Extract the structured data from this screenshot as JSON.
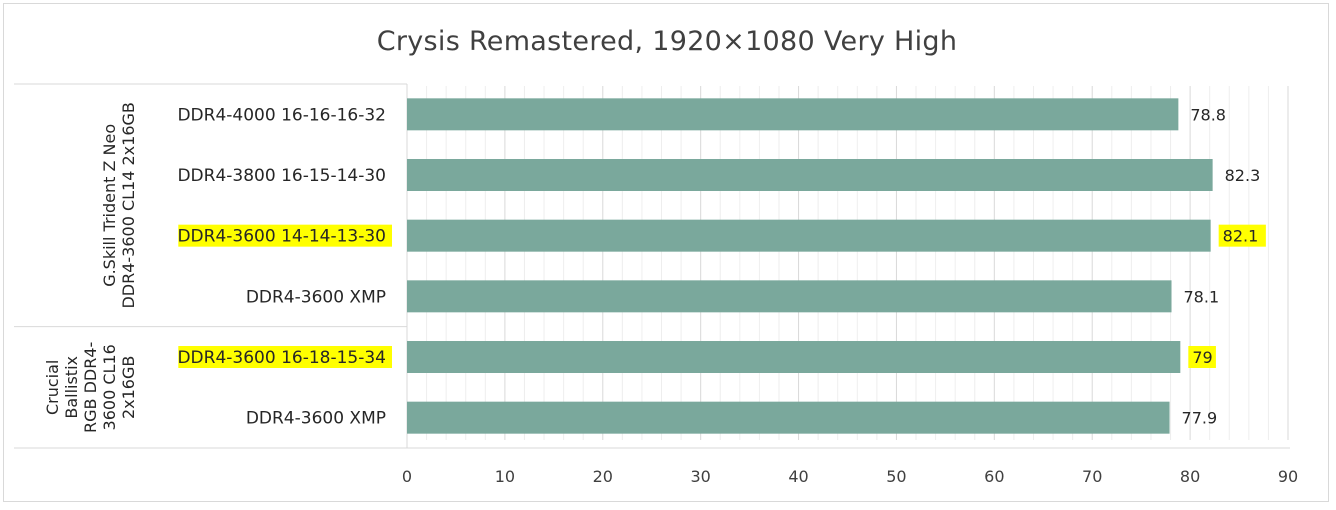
{
  "colors": {
    "bar": "#7aa89c",
    "highlight": "#ffff00",
    "grid": "#d9d9d9",
    "text": "#262626"
  },
  "chart_data": {
    "type": "bar",
    "orientation": "horizontal",
    "title": "Crysis Remastered, 1920×1080 Very High",
    "xlim": [
      0,
      90
    ],
    "x_ticks": [
      0,
      10,
      20,
      30,
      40,
      50,
      60,
      70,
      80,
      90
    ],
    "grid": true,
    "groups": [
      {
        "lines": [
          "G.Skill Trident Z Neo",
          "DDR4-3600 CL14 2x16GB"
        ],
        "categories": [
          "DDR4-4000 16-16-16-32",
          "DDR4-3800 16-15-14-30",
          "DDR4-3600 14-14-13-30",
          "DDR4-3600 XMP"
        ],
        "values": [
          78.8,
          82.3,
          82.1,
          78.1
        ],
        "highlighted": [
          false,
          false,
          true,
          false
        ]
      },
      {
        "lines": [
          "Crucial",
          "Ballistix",
          "RGB DDR4-",
          "3600 CL16",
          "2x16GB"
        ],
        "categories": [
          "DDR4-3600 16-18-15-34",
          "DDR4-3600 XMP"
        ],
        "values": [
          79,
          77.9
        ],
        "highlighted": [
          true,
          false
        ]
      }
    ]
  }
}
